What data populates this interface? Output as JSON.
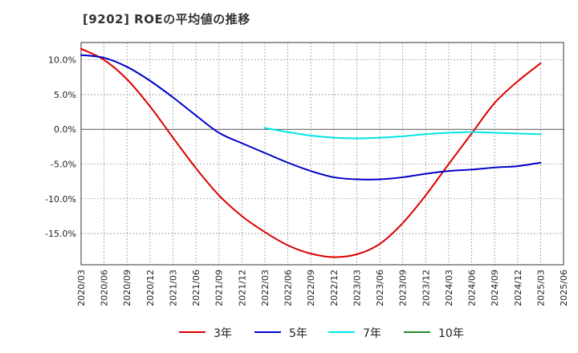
{
  "title": "[9202]  ROEの平均値の推移",
  "chart_data": {
    "type": "line",
    "title": "[9202]  ROEの平均値の推移",
    "xlabel": "",
    "ylabel": "",
    "ylim": [
      -19.5,
      12.5
    ],
    "grid": true,
    "legend_position": "bottom",
    "x_ticks": [
      "2020/03",
      "2020/06",
      "2020/09",
      "2020/12",
      "2021/03",
      "2021/06",
      "2021/09",
      "2021/12",
      "2022/03",
      "2022/06",
      "2022/09",
      "2022/12",
      "2023/03",
      "2023/06",
      "2023/09",
      "2023/12",
      "2024/03",
      "2024/06",
      "2024/09",
      "2024/12",
      "2025/03",
      "2025/06"
    ],
    "y_ticks": [
      {
        "value": 10,
        "label": "10.0%"
      },
      {
        "value": 5,
        "label": "5.0%"
      },
      {
        "value": 0,
        "label": "0.0%"
      },
      {
        "value": -5,
        "label": "-5.0%"
      },
      {
        "value": -10,
        "label": "-10.0%"
      },
      {
        "value": -15,
        "label": "-15.0%"
      }
    ],
    "series": [
      {
        "name": "3年",
        "color": "#dd0000",
        "x": [
          "2020/03",
          "2020/06",
          "2020/09",
          "2020/12",
          "2021/03",
          "2021/06",
          "2021/09",
          "2021/12",
          "2022/03",
          "2022/06",
          "2022/09",
          "2022/12",
          "2023/03",
          "2023/06",
          "2023/09",
          "2023/12",
          "2024/03",
          "2024/06",
          "2024/09",
          "2024/12",
          "2025/03"
        ],
        "values": [
          11.6,
          10.0,
          7.2,
          3.3,
          -1.2,
          -5.6,
          -9.5,
          -12.5,
          -14.8,
          -16.7,
          -17.9,
          -18.4,
          -18.0,
          -16.5,
          -13.5,
          -9.5,
          -5.0,
          -0.6,
          3.8,
          6.9,
          9.5
        ]
      },
      {
        "name": "5年",
        "color": "#0000cc",
        "x": [
          "2020/03",
          "2020/06",
          "2020/09",
          "2020/12",
          "2021/03",
          "2021/06",
          "2021/09",
          "2021/12",
          "2022/03",
          "2022/06",
          "2022/09",
          "2022/12",
          "2023/03",
          "2023/06",
          "2023/09",
          "2023/12",
          "2024/03",
          "2024/06",
          "2024/09",
          "2024/12",
          "2025/03"
        ],
        "values": [
          10.7,
          10.3,
          9.0,
          7.0,
          4.6,
          2.0,
          -0.5,
          -2.0,
          -3.4,
          -4.8,
          -6.0,
          -6.9,
          -7.2,
          -7.2,
          -6.9,
          -6.4,
          -6.0,
          -5.8,
          -5.5,
          -5.3,
          -4.8
        ]
      },
      {
        "name": "7年",
        "color": "#00e5e5",
        "x": [
          "2022/03",
          "2022/06",
          "2022/09",
          "2022/12",
          "2023/03",
          "2023/06",
          "2023/09",
          "2023/12",
          "2024/03",
          "2024/06",
          "2024/09",
          "2024/12",
          "2025/03"
        ],
        "values": [
          0.2,
          -0.4,
          -0.9,
          -1.2,
          -1.3,
          -1.2,
          -1.0,
          -0.7,
          -0.5,
          -0.4,
          -0.5,
          -0.6,
          -0.7
        ]
      },
      {
        "name": "10年",
        "color": "#228822",
        "x": [],
        "values": []
      }
    ]
  }
}
